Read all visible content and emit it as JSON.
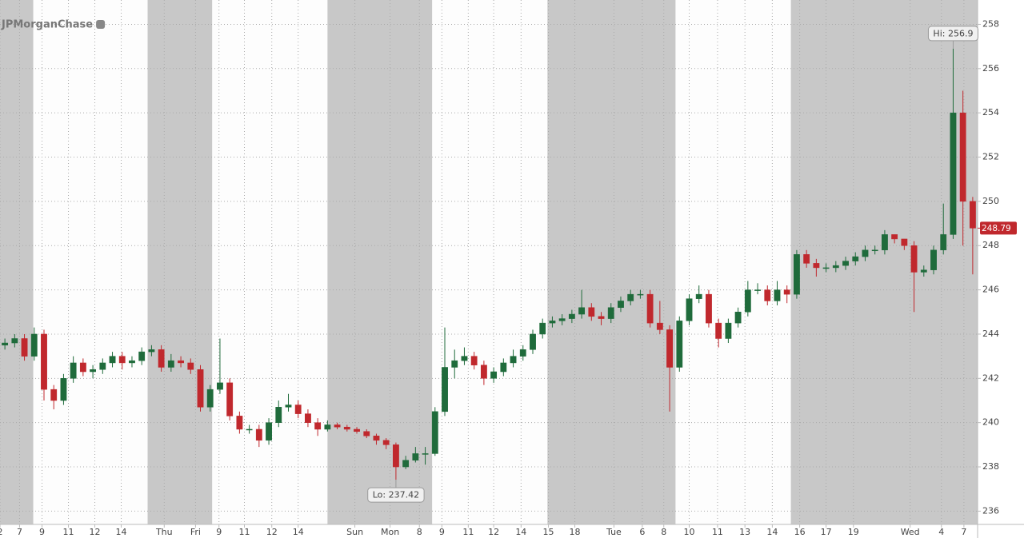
{
  "chart_data": {
    "type": "candlestick",
    "logo": "JPMorganChase",
    "open": [
      243.5,
      243.6,
      243.8,
      243.0,
      244.0,
      241.5,
      241.0,
      242.0,
      242.7,
      242.3,
      242.4,
      242.7,
      243.0,
      242.7,
      242.8,
      243.2,
      243.3,
      242.5,
      242.8,
      242.7,
      242.4,
      240.7,
      241.5,
      241.8,
      240.3,
      239.7,
      239.7,
      239.2,
      240.0,
      240.7,
      240.8,
      240.4,
      240.0,
      239.7,
      239.9,
      239.8,
      239.7,
      239.6,
      239.4,
      239.2,
      239.0,
      238.0,
      238.3,
      238.6,
      238.6,
      240.5,
      242.5,
      242.8,
      243.0,
      242.6,
      242.0,
      242.3,
      242.7,
      243.0,
      243.3,
      244.0,
      244.5,
      244.6,
      244.7,
      244.9,
      245.2,
      244.8,
      244.7,
      245.2,
      245.5,
      245.8,
      245.8,
      244.5,
      244.2,
      242.5,
      244.6,
      245.6,
      245.8,
      244.5,
      243.8,
      244.5,
      245.0,
      246.0,
      246.0,
      245.5,
      246.0,
      245.8,
      247.6,
      247.2,
      247.0,
      247.0,
      247.1,
      247.3,
      247.5,
      247.8,
      247.8,
      248.5,
      248.3,
      248.0,
      246.8,
      246.9,
      247.8,
      248.5,
      254.0,
      250.0
    ],
    "high": [
      243.8,
      244.0,
      244.0,
      244.3,
      244.2,
      241.7,
      242.2,
      243.0,
      242.9,
      242.6,
      242.9,
      243.2,
      243.2,
      243.0,
      243.4,
      243.5,
      243.5,
      243.1,
      243.0,
      242.9,
      242.6,
      241.7,
      243.8,
      242.0,
      240.5,
      239.9,
      239.9,
      240.2,
      241.0,
      241.3,
      241.0,
      240.6,
      240.2,
      240.1,
      240.0,
      239.9,
      239.8,
      239.7,
      239.5,
      239.3,
      239.1,
      238.5,
      238.9,
      238.9,
      240.7,
      244.3,
      243.3,
      243.4,
      243.2,
      242.8,
      242.5,
      242.9,
      243.3,
      243.5,
      244.2,
      244.7,
      244.8,
      244.9,
      245.1,
      246.0,
      245.4,
      245.0,
      245.4,
      245.7,
      246.0,
      246.0,
      246.0,
      245.5,
      244.4,
      244.8,
      245.8,
      246.2,
      246.0,
      244.7,
      244.7,
      245.2,
      246.4,
      246.3,
      246.2,
      246.4,
      246.2,
      247.8,
      247.8,
      247.4,
      247.2,
      247.3,
      247.5,
      247.7,
      248.0,
      248.0,
      248.7,
      248.5,
      248.3,
      248.2,
      247.1,
      248.0,
      249.9,
      256.9,
      255.0,
      250.2
    ],
    "low": [
      243.3,
      243.4,
      242.8,
      242.8,
      241.0,
      240.6,
      240.8,
      241.8,
      242.1,
      242.0,
      242.2,
      242.5,
      242.4,
      242.5,
      242.6,
      243.0,
      242.3,
      242.3,
      242.5,
      242.2,
      240.5,
      240.5,
      241.3,
      240.1,
      239.5,
      239.5,
      238.9,
      239.0,
      239.8,
      240.5,
      240.2,
      239.8,
      239.4,
      239.6,
      239.7,
      239.6,
      239.5,
      239.3,
      239.0,
      238.8,
      237.42,
      237.9,
      238.2,
      238.1,
      238.5,
      240.3,
      242.0,
      242.6,
      242.4,
      241.7,
      241.8,
      242.1,
      242.5,
      242.8,
      243.1,
      243.8,
      244.3,
      244.4,
      244.5,
      244.7,
      244.6,
      244.4,
      244.5,
      245.0,
      245.3,
      245.6,
      244.3,
      244.0,
      240.5,
      242.3,
      244.4,
      245.4,
      244.3,
      243.4,
      243.6,
      244.3,
      244.8,
      245.8,
      245.3,
      245.3,
      245.4,
      245.6,
      247.0,
      246.6,
      246.8,
      246.8,
      246.9,
      247.1,
      247.3,
      247.6,
      247.6,
      248.1,
      247.8,
      245.0,
      246.6,
      246.7,
      247.6,
      248.3,
      248.0,
      246.7
    ],
    "close": [
      243.6,
      243.8,
      243.0,
      244.0,
      241.5,
      241.0,
      242.0,
      242.7,
      242.3,
      242.4,
      242.7,
      243.0,
      242.7,
      242.8,
      243.2,
      243.3,
      242.5,
      242.8,
      242.7,
      242.4,
      240.7,
      241.5,
      241.8,
      240.3,
      239.7,
      239.7,
      239.2,
      240.0,
      240.7,
      240.8,
      240.4,
      240.0,
      239.7,
      239.9,
      239.8,
      239.7,
      239.6,
      239.4,
      239.2,
      239.0,
      238.0,
      238.3,
      238.6,
      238.6,
      240.5,
      242.5,
      242.8,
      243.0,
      242.6,
      242.0,
      242.3,
      242.7,
      243.0,
      243.3,
      244.0,
      244.5,
      244.6,
      244.7,
      244.9,
      245.2,
      244.8,
      244.7,
      245.2,
      245.5,
      245.8,
      245.8,
      244.5,
      244.2,
      242.5,
      244.6,
      245.6,
      245.8,
      244.5,
      243.8,
      244.5,
      245.0,
      246.0,
      246.0,
      245.5,
      246.0,
      245.8,
      247.6,
      247.2,
      247.0,
      247.0,
      247.1,
      247.3,
      247.5,
      247.8,
      247.8,
      248.5,
      248.3,
      248.0,
      246.8,
      246.9,
      247.8,
      248.5,
      254.0,
      250.0,
      248.79
    ],
    "up_color": "#1f6b3b",
    "down_color": "#c0282d",
    "xlim": [
      0,
      100
    ],
    "xticks": [
      {
        "value": 0,
        "label": "2"
      },
      {
        "value": 2.0,
        "label": "7"
      },
      {
        "value": 4.3,
        "label": "9"
      },
      {
        "value": 7.0,
        "label": "11"
      },
      {
        "value": 9.7,
        "label": "12"
      },
      {
        "value": 12.4,
        "label": "14"
      },
      {
        "value": 16.8,
        "label": "Thu"
      },
      {
        "value": 20.0,
        "label": "Fri"
      },
      {
        "value": 22.4,
        "label": "9"
      },
      {
        "value": 25.0,
        "label": "11"
      },
      {
        "value": 27.8,
        "label": "12"
      },
      {
        "value": 30.5,
        "label": "14"
      },
      {
        "value": 36.3,
        "label": "Sun"
      },
      {
        "value": 39.9,
        "label": "Mon"
      },
      {
        "value": 42.9,
        "label": "8"
      },
      {
        "value": 45.2,
        "label": "9"
      },
      {
        "value": 47.9,
        "label": "11"
      },
      {
        "value": 50.5,
        "label": "12"
      },
      {
        "value": 53.3,
        "label": "14"
      },
      {
        "value": 56.1,
        "label": "15"
      },
      {
        "value": 58.8,
        "label": "18"
      },
      {
        "value": 62.8,
        "label": "Tue"
      },
      {
        "value": 65.7,
        "label": "6"
      },
      {
        "value": 67.9,
        "label": "8"
      },
      {
        "value": 70.5,
        "label": "10"
      },
      {
        "value": 73.4,
        "label": "11"
      },
      {
        "value": 76.2,
        "label": "13"
      },
      {
        "value": 79.0,
        "label": "14"
      },
      {
        "value": 81.8,
        "label": "16"
      },
      {
        "value": 84.5,
        "label": "17"
      },
      {
        "value": 87.3,
        "label": "19"
      },
      {
        "value": 93.1,
        "label": "Wed"
      },
      {
        "value": 96.3,
        "label": "4"
      },
      {
        "value": 98.6,
        "label": "7"
      }
    ],
    "ylim": [
      235.4,
      259.1
    ],
    "yticks": [
      236,
      238,
      240,
      242,
      244,
      246,
      248,
      250,
      252,
      254,
      256,
      258
    ],
    "grid": true,
    "shaded": [
      [
        0,
        3.4
      ],
      [
        15.1,
        21.7
      ],
      [
        33.5,
        44.2
      ],
      [
        56.0,
        69.1
      ],
      [
        80.9,
        100
      ]
    ],
    "shade_color": "#c8c8c8",
    "annotations": [
      {
        "label": "Hi: 256.9",
        "value": 256.9,
        "index": 97,
        "position": "above"
      },
      {
        "label": "Lo: 237.42",
        "value": 237.42,
        "index": 40,
        "position": "below"
      }
    ],
    "last_price": 248.79
  }
}
